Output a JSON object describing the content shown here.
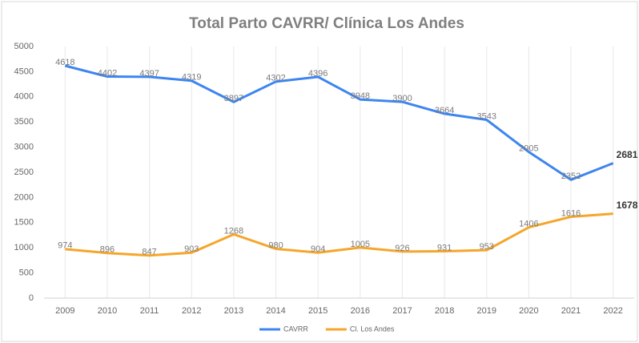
{
  "chart_data": {
    "type": "line",
    "title": "Total Parto CAVRR/ Clínica Los Andes",
    "categories": [
      "2009",
      "2010",
      "2011",
      "2012",
      "2013",
      "2014",
      "2015",
      "2016",
      "2017",
      "2018",
      "2019",
      "2020",
      "2021",
      "2022"
    ],
    "series": [
      {
        "name": "CAVRR",
        "color": "#3d85f0",
        "values": [
          4618,
          4402,
          4397,
          4319,
          3897,
          4302,
          4396,
          3948,
          3900,
          3664,
          3543,
          2905,
          2352,
          2681
        ]
      },
      {
        "name": "Cl. Los Andes",
        "color": "#f5a62a",
        "values": [
          974,
          896,
          847,
          903,
          1268,
          980,
          904,
          1005,
          926,
          931,
          953,
          1406,
          1616,
          1678
        ]
      }
    ],
    "ylim": [
      0,
      5000
    ],
    "yticks": [
      0,
      500,
      1000,
      1500,
      2000,
      2500,
      3000,
      3500,
      4000,
      4500,
      5000
    ],
    "grid": "vertical",
    "legend": "bottom"
  }
}
